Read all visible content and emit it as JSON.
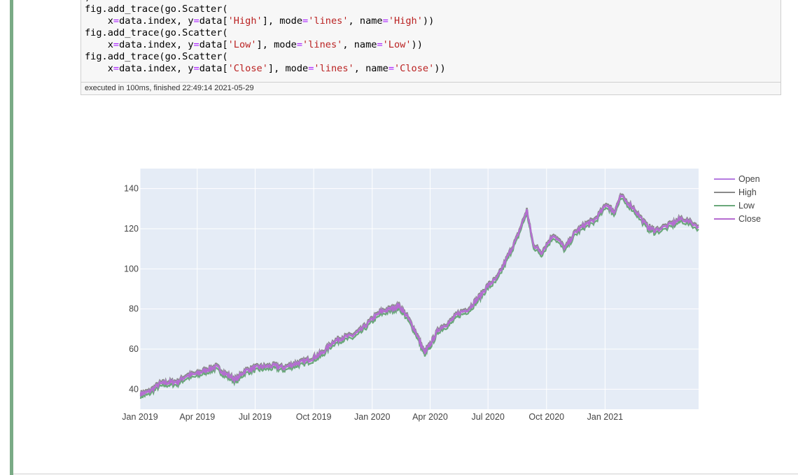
{
  "notebook": {
    "code_lines": [
      ")",
      "fig.add_trace(go.Scatter(",
      "    x=data.index, y=data['High'], mode='lines', name='High'))",
      "fig.add_trace(go.Scatter(",
      "    x=data.index, y=data['Low'], mode='lines', name='Low'))",
      "fig.add_trace(go.Scatter(",
      "    x=data.index, y=data['Close'], mode='lines', name='Close'))"
    ],
    "exec_info": "executed in 100ms, finished 22:49:14 2021-05-29"
  },
  "colors": {
    "open": "#b57be0",
    "high": "#8a8a8a",
    "low": "#6aa87a",
    "close": "#b56cd0",
    "plot_bg": "#e5ecf6",
    "grid": "#ffffff",
    "cell_bar": "#7aab86"
  },
  "chart_data": {
    "type": "line",
    "ylim": [
      30,
      150
    ],
    "y_ticks": [
      40,
      60,
      80,
      100,
      120,
      140
    ],
    "x_tick_labels": [
      "Jan 2019",
      "Apr 2019",
      "Jul 2019",
      "Oct 2019",
      "Jan 2020",
      "Apr 2020",
      "Jul 2020",
      "Oct 2020",
      "Jan 2021"
    ],
    "x_tick_dates": [
      "2019-01-01",
      "2019-04-01",
      "2019-07-01",
      "2019-10-01",
      "2020-01-01",
      "2020-04-01",
      "2020-07-01",
      "2020-10-01",
      "2021-01-01"
    ],
    "x_range": [
      "2019-01-01",
      "2021-05-28"
    ],
    "legend": [
      "Open",
      "High",
      "Low",
      "Close"
    ],
    "legend_position": "top-right",
    "series": [
      {
        "name": "Close",
        "x": [
          "2019-01-02",
          "2019-01-15",
          "2019-02-01",
          "2019-02-15",
          "2019-03-01",
          "2019-03-15",
          "2019-04-01",
          "2019-04-15",
          "2019-05-01",
          "2019-05-15",
          "2019-06-01",
          "2019-06-15",
          "2019-07-01",
          "2019-07-15",
          "2019-08-01",
          "2019-08-15",
          "2019-09-01",
          "2019-09-15",
          "2019-10-01",
          "2019-10-15",
          "2019-11-01",
          "2019-11-15",
          "2019-12-01",
          "2019-12-15",
          "2020-01-02",
          "2020-01-15",
          "2020-02-01",
          "2020-02-12",
          "2020-02-25",
          "2020-03-10",
          "2020-03-23",
          "2020-04-01",
          "2020-04-15",
          "2020-05-01",
          "2020-05-15",
          "2020-06-01",
          "2020-06-15",
          "2020-07-01",
          "2020-07-15",
          "2020-08-01",
          "2020-08-15",
          "2020-08-31",
          "2020-09-10",
          "2020-09-23",
          "2020-10-12",
          "2020-10-30",
          "2020-11-15",
          "2020-12-01",
          "2020-12-15",
          "2021-01-04",
          "2021-01-15",
          "2021-01-26",
          "2021-02-15",
          "2021-03-08",
          "2021-03-20",
          "2021-04-15",
          "2021-05-01",
          "2021-05-28"
        ],
        "y": [
          37.5,
          38.5,
          42.5,
          43.2,
          43.5,
          46.5,
          47.5,
          49.5,
          51,
          47.5,
          44.5,
          49,
          50.5,
          51,
          51.5,
          50.5,
          52.5,
          53.5,
          55.5,
          58,
          63.5,
          65.5,
          66.5,
          69.5,
          75,
          78.5,
          80,
          81.5,
          76,
          68,
          58,
          62,
          70,
          73,
          77.5,
          80,
          85,
          91.5,
          95,
          106,
          115,
          129,
          112,
          108,
          117,
          110,
          118,
          122,
          124,
          132,
          128,
          136,
          130,
          121,
          119,
          122,
          125,
          121
        ]
      }
    ]
  }
}
